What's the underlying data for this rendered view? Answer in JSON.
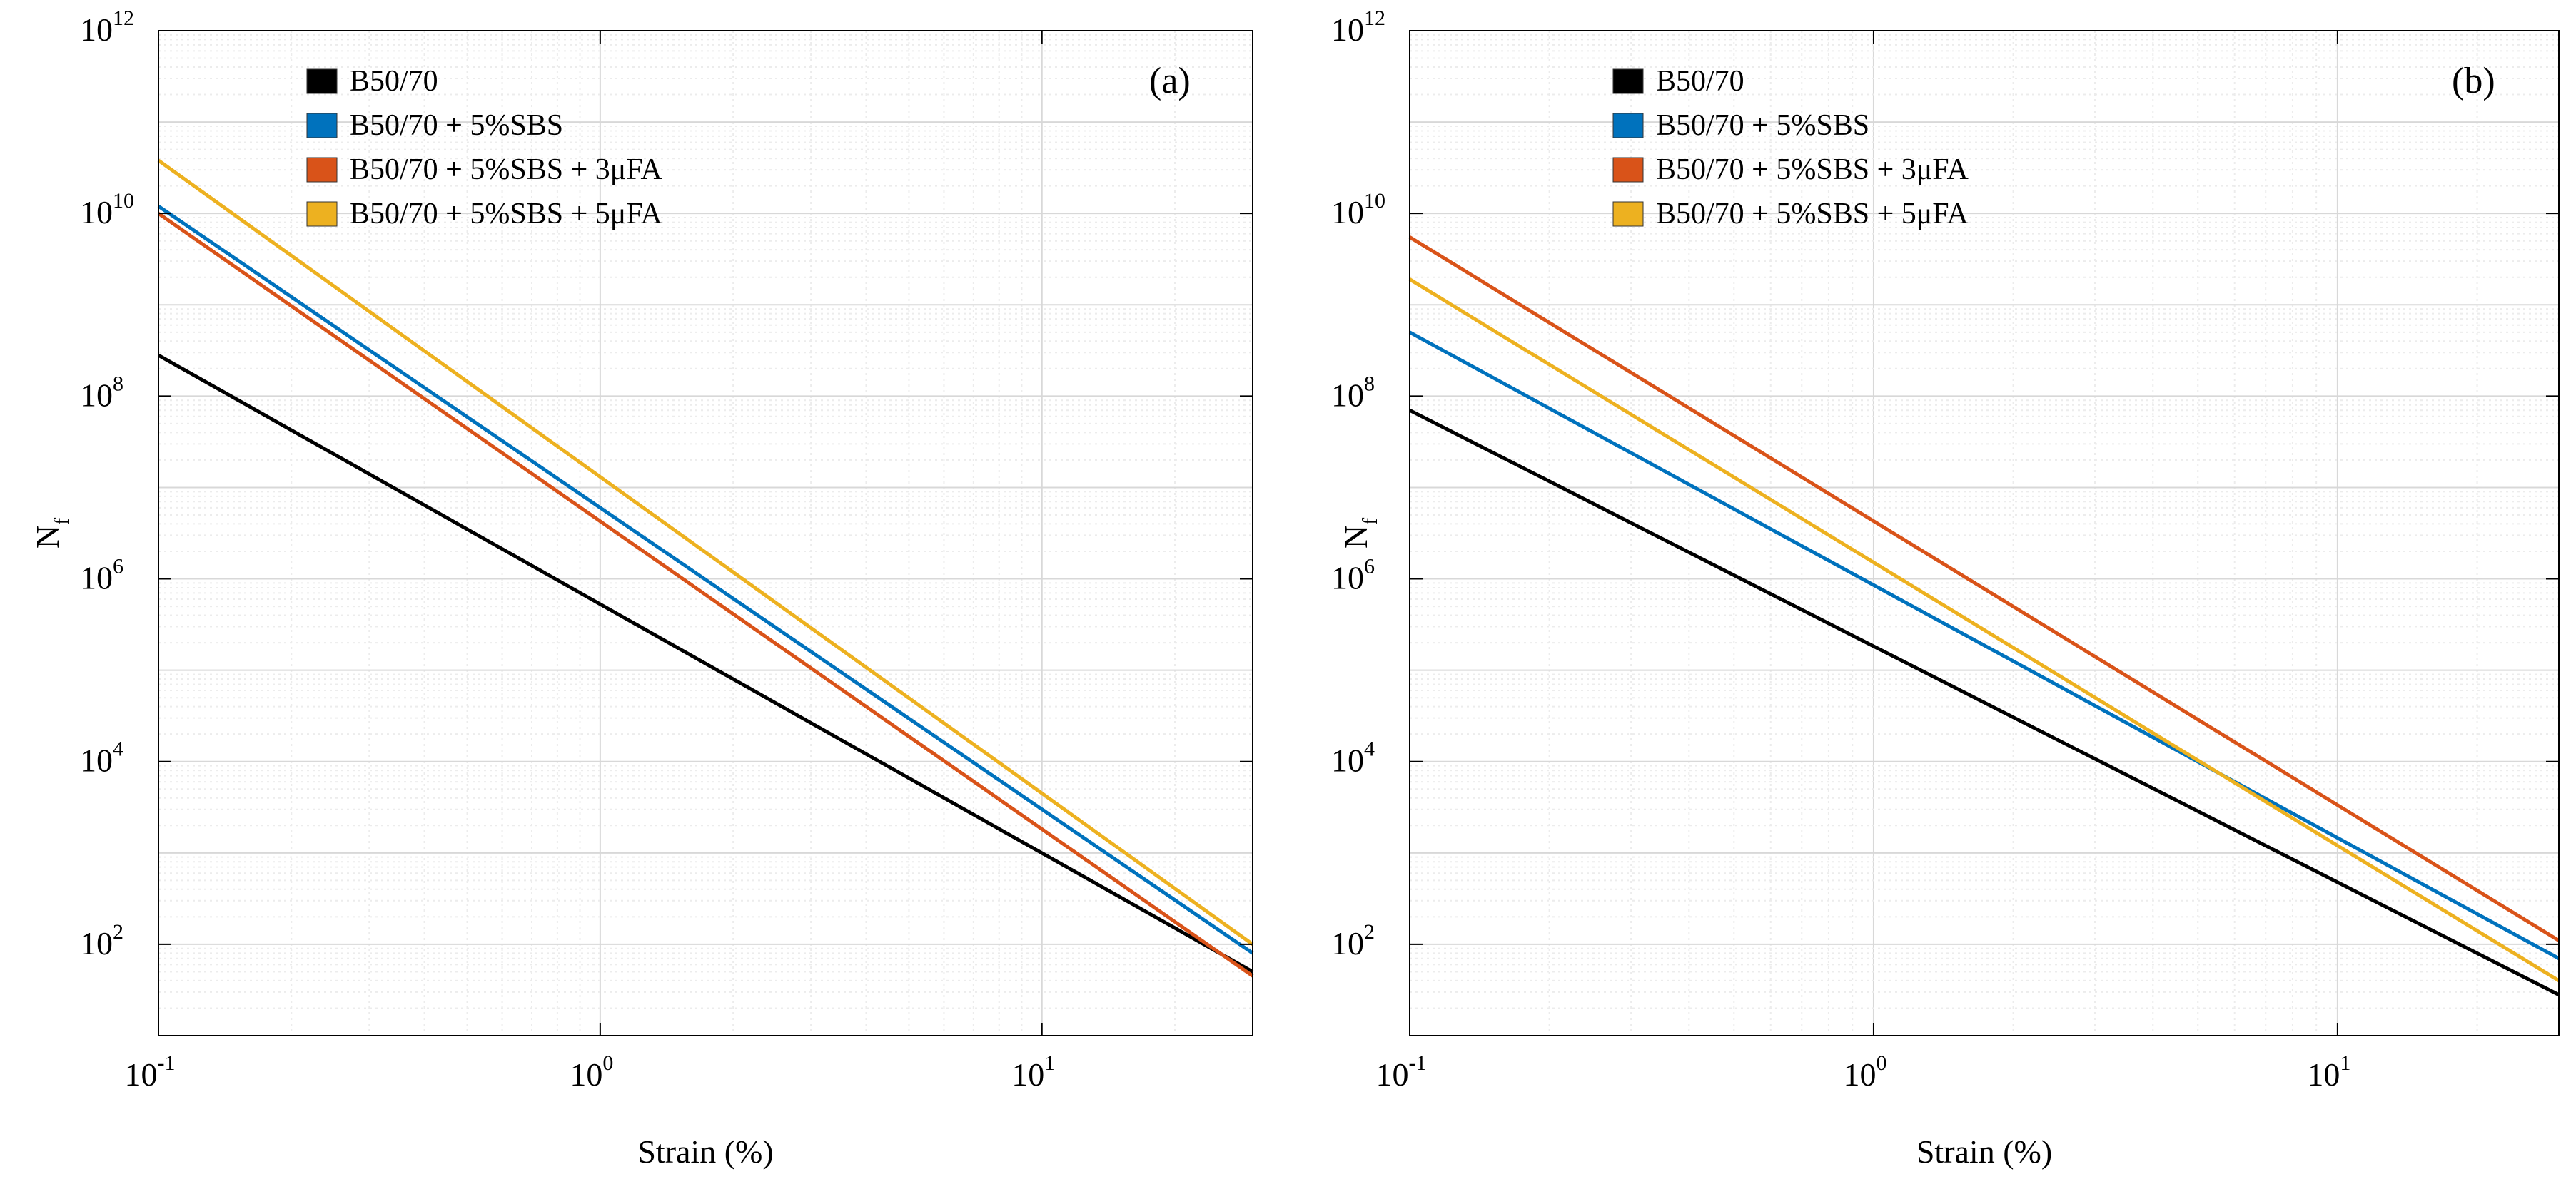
{
  "chart_data": [
    {
      "type": "line",
      "panel_label": "(a)",
      "xlabel": "Strain (%)",
      "ylabel": "N",
      "ylabel_sub": "f",
      "x_scale": "log",
      "y_scale": "log",
      "xlim": [
        0.1,
        30
      ],
      "ylim": [
        10,
        1000000000000
      ],
      "x_ticks": [
        {
          "base": "10",
          "exp": "-1"
        },
        {
          "base": "10",
          "exp": "0"
        },
        {
          "base": "10",
          "exp": "1"
        }
      ],
      "y_ticks": [
        {
          "base": "10",
          "exp": "2"
        },
        {
          "base": "10",
          "exp": "4"
        },
        {
          "base": "10",
          "exp": "6"
        },
        {
          "base": "10",
          "exp": "8"
        },
        {
          "base": "10",
          "exp": "10"
        },
        {
          "base": "10",
          "exp": "12"
        }
      ],
      "grid": true,
      "legend_position": "top-left",
      "series": [
        {
          "name": "B50/70",
          "color": "#000000",
          "x": [
            0.1,
            30
          ],
          "y": [
            280000000,
            50
          ]
        },
        {
          "name": "B50/70 + 5%SBS",
          "color": "#0072BD",
          "x": [
            0.1,
            30
          ],
          "y": [
            12000000000,
            80
          ]
        },
        {
          "name": "B50/70 + 5%SBS + 3μFA",
          "color": "#D95319",
          "x": [
            0.1,
            30
          ],
          "y": [
            10000000000,
            45
          ]
        },
        {
          "name": "B50/70 + 5%SBS + 5μFA",
          "color": "#EDB120",
          "x": [
            0.1,
            30
          ],
          "y": [
            38000000000,
            100
          ]
        }
      ]
    },
    {
      "type": "line",
      "panel_label": "(b)",
      "xlabel": "Strain (%)",
      "ylabel": "N",
      "ylabel_sub": "f",
      "x_scale": "log",
      "y_scale": "log",
      "xlim": [
        0.1,
        30
      ],
      "ylim": [
        10,
        1000000000000
      ],
      "x_ticks": [
        {
          "base": "10",
          "exp": "-1"
        },
        {
          "base": "10",
          "exp": "0"
        },
        {
          "base": "10",
          "exp": "1"
        }
      ],
      "y_ticks": [
        {
          "base": "10",
          "exp": "2"
        },
        {
          "base": "10",
          "exp": "4"
        },
        {
          "base": "10",
          "exp": "6"
        },
        {
          "base": "10",
          "exp": "8"
        },
        {
          "base": "10",
          "exp": "10"
        },
        {
          "base": "10",
          "exp": "12"
        }
      ],
      "grid": true,
      "legend_position": "top-left",
      "series": [
        {
          "name": "B50/70",
          "color": "#000000",
          "x": [
            0.1,
            30
          ],
          "y": [
            70000000,
            28
          ]
        },
        {
          "name": "B50/70 + 5%SBS",
          "color": "#0072BD",
          "x": [
            0.1,
            30
          ],
          "y": [
            500000000,
            70
          ]
        },
        {
          "name": "B50/70 + 5%SBS + 3μFA",
          "color": "#D95319",
          "x": [
            0.1,
            30
          ],
          "y": [
            5500000000,
            110
          ]
        },
        {
          "name": "B50/70 + 5%SBS + 5μFA",
          "color": "#EDB120",
          "x": [
            0.1,
            30
          ],
          "y": [
            1900000000,
            40
          ]
        }
      ]
    }
  ]
}
